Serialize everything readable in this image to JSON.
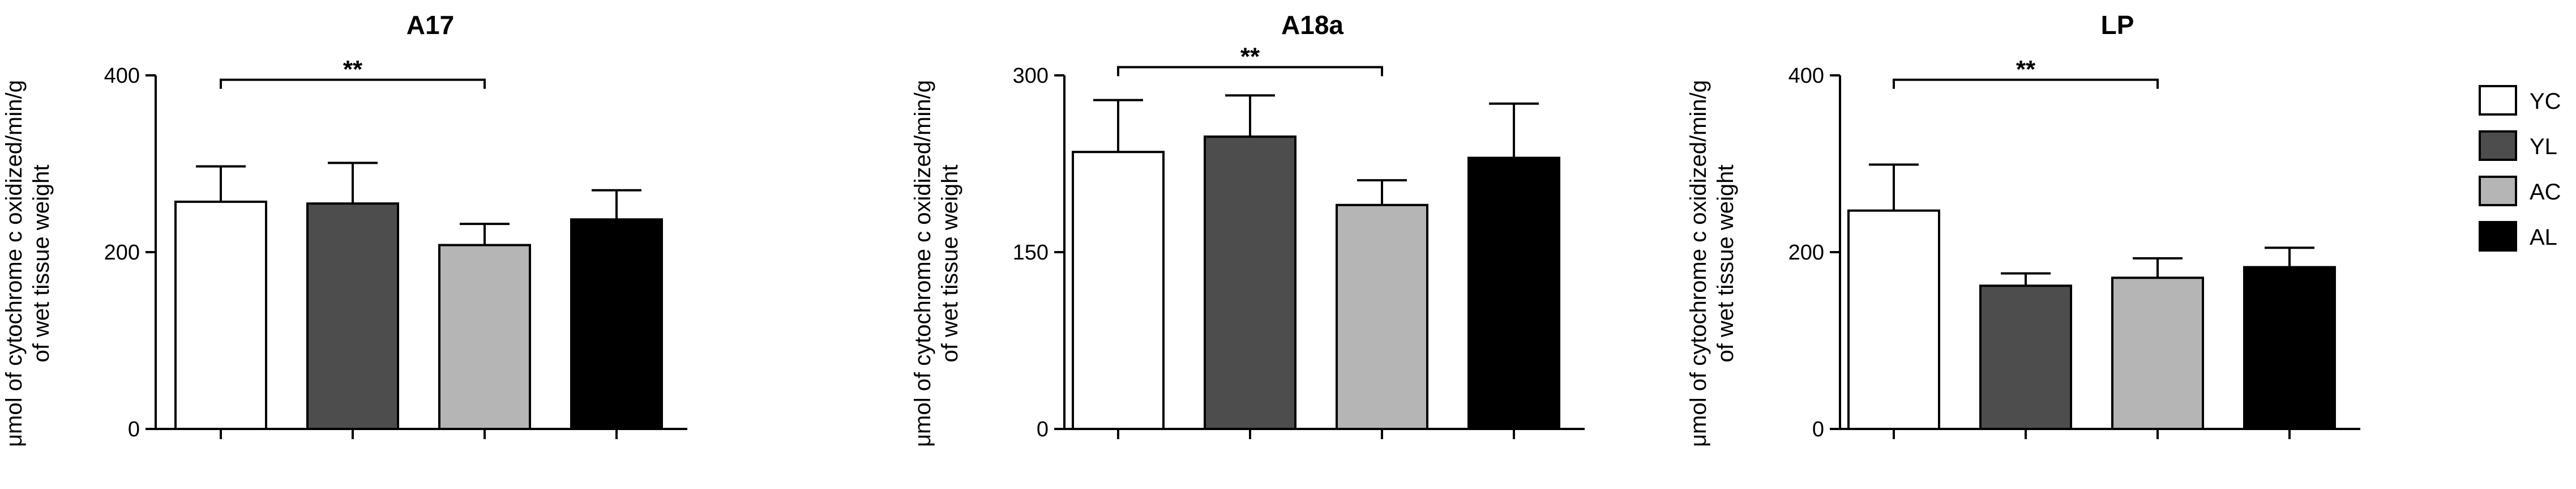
{
  "chart_data": [
    {
      "type": "bar",
      "title": "A17",
      "ylabel_lines": [
        "μmol of cytochrome c oxidized/min/g",
        "of wet tissue weight"
      ],
      "categories": [
        "YC",
        "YL",
        "AC",
        "AL"
      ],
      "values": [
        257,
        255,
        208,
        237
      ],
      "errors": [
        40,
        46,
        24,
        33
      ],
      "ylim": [
        0,
        400
      ],
      "yticks": [
        0,
        200,
        400
      ],
      "significance": {
        "from": "YC",
        "to": "AC",
        "label": "**",
        "y": 395
      }
    },
    {
      "type": "bar",
      "title": "A18a",
      "ylabel_lines": [
        "μmol of cytochrome c oxidized/min/g",
        "of wet tissue weight"
      ],
      "categories": [
        "YC",
        "YL",
        "AC",
        "AL"
      ],
      "values": [
        235,
        248,
        190,
        230
      ],
      "errors": [
        44,
        35,
        21,
        46
      ],
      "ylim": [
        0,
        300
      ],
      "yticks": [
        0,
        150,
        300
      ],
      "significance": {
        "from": "YC",
        "to": "AC",
        "label": "**",
        "y": 307
      }
    },
    {
      "type": "bar",
      "title": "LP",
      "ylabel_lines": [
        "μmol of cytochrome c oxidized/min/g",
        "of wet tissue weight"
      ],
      "categories": [
        "YC",
        "YL",
        "AC",
        "AL"
      ],
      "values": [
        247,
        162,
        171,
        183
      ],
      "errors": [
        52,
        14,
        22,
        22
      ],
      "ylim": [
        0,
        400
      ],
      "yticks": [
        0,
        200,
        400
      ],
      "significance": {
        "from": "YC",
        "to": "AC",
        "label": "**",
        "y": 395
      }
    }
  ],
  "legend": {
    "position": "right",
    "items": [
      {
        "label": "YC",
        "color": "#ffffff"
      },
      {
        "label": "YL",
        "color": "#4d4d4d"
      },
      {
        "label": "AC",
        "color": "#b5b5b5"
      },
      {
        "label": "AL",
        "color": "#000000"
      }
    ]
  },
  "colors": {
    "YC": "#ffffff",
    "YL": "#4d4d4d",
    "AC": "#b5b5b5",
    "AL": "#000000"
  }
}
